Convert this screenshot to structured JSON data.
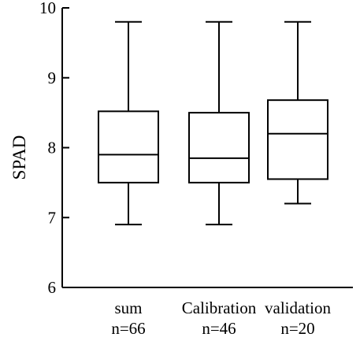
{
  "chart_data": {
    "type": "box",
    "ylabel": "SPAD",
    "ylim": [
      6,
      10
    ],
    "yticks": [
      6,
      7,
      8,
      9,
      10
    ],
    "grid": false,
    "boxes": [
      {
        "label": "sum",
        "n_label": "n=66",
        "whisker_low": 6.9,
        "q1": 7.5,
        "median": 7.9,
        "q3": 8.52,
        "whisker_high": 9.8
      },
      {
        "label": "Calibration",
        "n_label": "n=46",
        "whisker_low": 6.9,
        "q1": 7.5,
        "median": 7.85,
        "q3": 8.5,
        "whisker_high": 9.8
      },
      {
        "label": "validation",
        "n_label": "n=20",
        "whisker_low": 7.2,
        "q1": 7.55,
        "median": 8.2,
        "q3": 8.68,
        "whisker_high": 9.8
      }
    ]
  }
}
